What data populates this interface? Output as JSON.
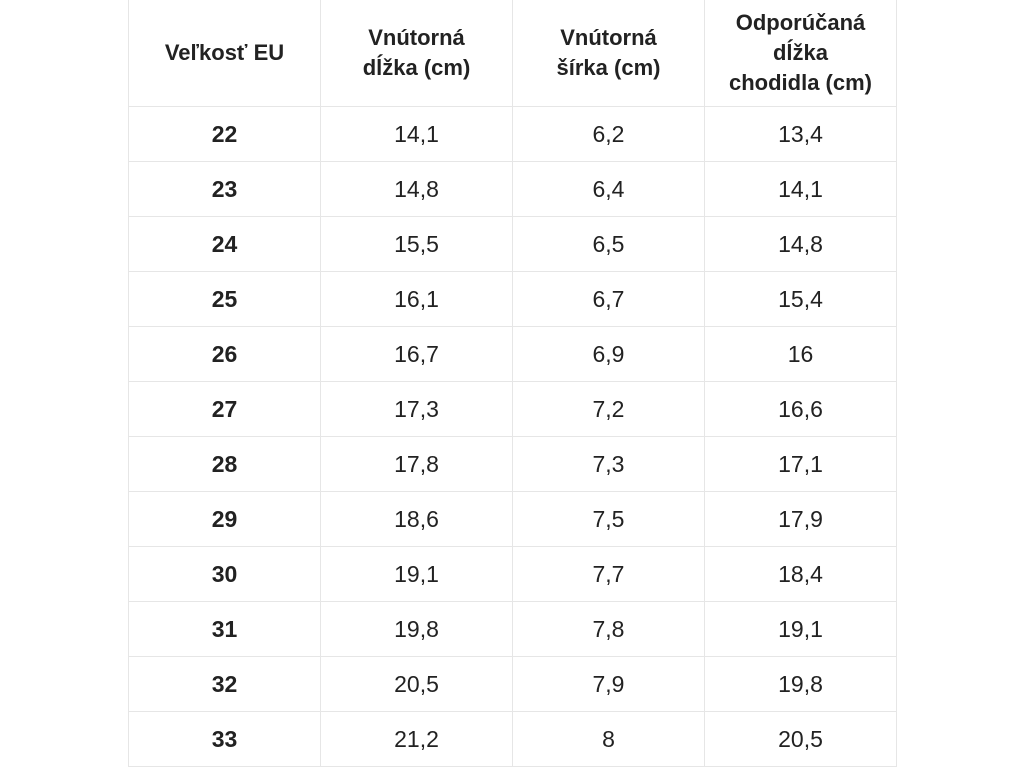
{
  "table": {
    "header": [
      [
        "Veľkosť EU"
      ],
      [
        "Vnútorná",
        "dĺžka (cm)"
      ],
      [
        "Vnútorná",
        "šírka (cm)"
      ],
      [
        "Odporúčaná",
        "dĺžka",
        "chodidla (cm)"
      ]
    ],
    "rows": [
      [
        "22",
        "14,1",
        "6,2",
        "13,4"
      ],
      [
        "23",
        "14,8",
        "6,4",
        "14,1"
      ],
      [
        "24",
        "15,5",
        "6,5",
        "14,8"
      ],
      [
        "25",
        "16,1",
        "6,7",
        "15,4"
      ],
      [
        "26",
        "16,7",
        "6,9",
        "16"
      ],
      [
        "27",
        "17,3",
        "7,2",
        "16,6"
      ],
      [
        "28",
        "17,8",
        "7,3",
        "17,1"
      ],
      [
        "29",
        "18,6",
        "7,5",
        "17,9"
      ],
      [
        "30",
        "19,1",
        "7,7",
        "18,4"
      ],
      [
        "31",
        "19,8",
        "7,8",
        "19,1"
      ],
      [
        "32",
        "20,5",
        "7,9",
        "19,8"
      ],
      [
        "33",
        "21,2",
        "8",
        "20,5"
      ]
    ]
  }
}
